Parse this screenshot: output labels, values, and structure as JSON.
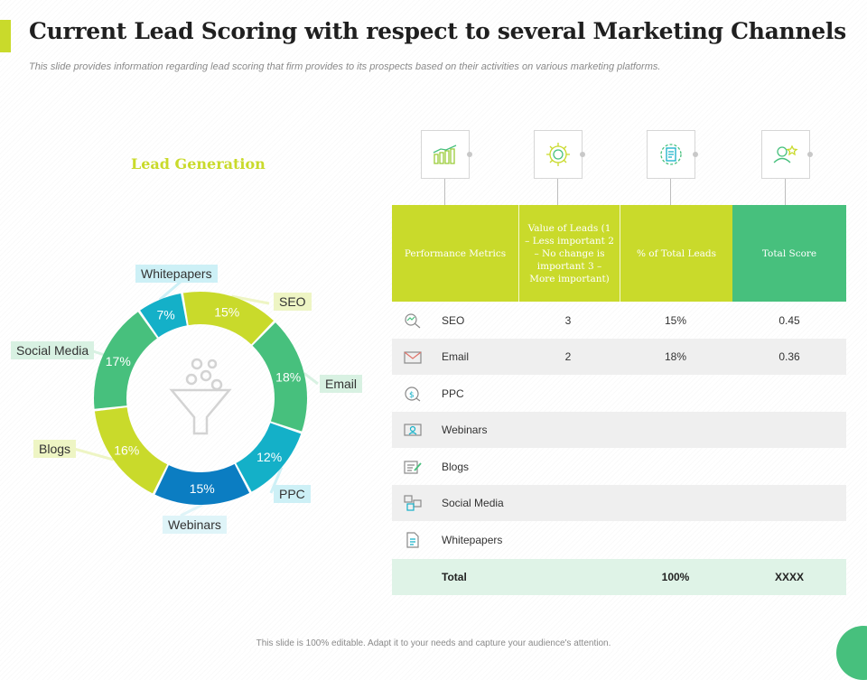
{
  "header": {
    "title": "Current Lead Scoring with respect to several Marketing Channels",
    "subtitle": "This slide provides information regarding lead scoring that firm provides to its prospects based on their activities on various marketing platforms."
  },
  "chart_title": "Lead Generation",
  "chart_data": {
    "type": "pie",
    "title": "Lead Generation",
    "categories": [
      "SEO",
      "Email",
      "PPC",
      "Webinars",
      "Blogs",
      "Social Media",
      "Whitepapers"
    ],
    "values": [
      15,
      18,
      12,
      15,
      16,
      17,
      7
    ],
    "value_labels": [
      "15%",
      "18%",
      "12%",
      "15%",
      "16%",
      "17%",
      "7%"
    ],
    "colors": [
      "#c9da2b",
      "#47c07d",
      "#14b0c8",
      "#0b7dc2",
      "#c9da2b",
      "#47c07d",
      "#14b0c8"
    ],
    "callout_colors": [
      "#eef5c4",
      "#d8f1e2",
      "#cdf0f6",
      "#dff4f8",
      "#eef5c4",
      "#d8f1e2",
      "#cdf0f6"
    ],
    "donut": true
  },
  "table": {
    "headers": [
      "Performance Metrics",
      "Value of Leads (1 – Less important 2 – No change  is important 3 – More important)",
      "% of Total Leads",
      "Total Score"
    ],
    "header_icons": [
      "bar-chart-icon",
      "gear-settings-icon",
      "document-gear-icon",
      "user-star-icon"
    ],
    "rows": [
      {
        "icon": "seo-icon",
        "metric": "SEO",
        "value": "3",
        "percent": "15%",
        "score": "0.45"
      },
      {
        "icon": "email-icon",
        "metric": "Email",
        "value": "2",
        "percent": "18%",
        "score": "0.36"
      },
      {
        "icon": "ppc-icon",
        "metric": "PPC",
        "value": "",
        "percent": "",
        "score": ""
      },
      {
        "icon": "webinar-icon",
        "metric": "Webinars",
        "value": "",
        "percent": "",
        "score": ""
      },
      {
        "icon": "blog-icon",
        "metric": "Blogs",
        "value": "",
        "percent": "",
        "score": ""
      },
      {
        "icon": "social-media-icon",
        "metric": "Social Media",
        "value": "",
        "percent": "",
        "score": ""
      },
      {
        "icon": "whitepaper-icon",
        "metric": "Whitepapers",
        "value": "",
        "percent": "",
        "score": ""
      }
    ],
    "total": {
      "label": "Total",
      "percent": "100%",
      "score": "XXXX"
    }
  },
  "colors": {
    "accent": "#c9da2b",
    "green": "#47c07d",
    "teal": "#14b0c8",
    "blue": "#0b7dc2"
  },
  "footer": "This slide is 100% editable. Adapt it to your needs and capture your audience's attention."
}
